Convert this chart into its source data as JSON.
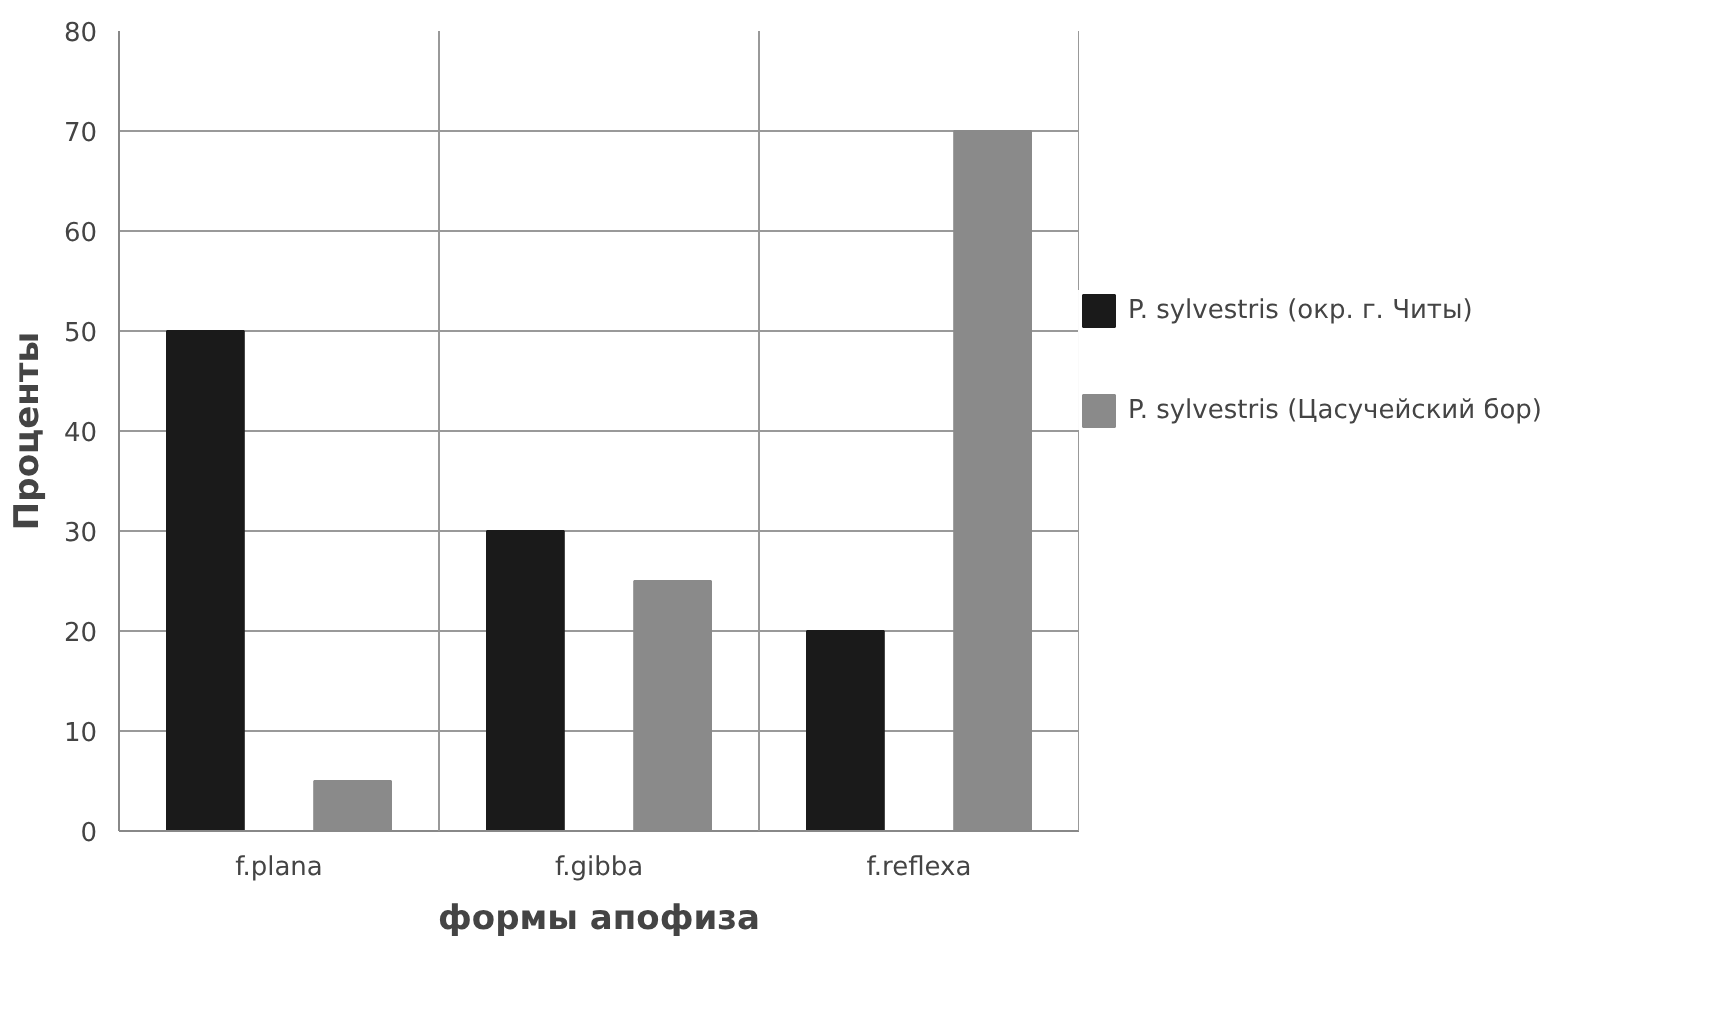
{
  "chart_data": {
    "type": "bar",
    "xlabel": "формы апофиза",
    "ylabel": "Проценты",
    "categories": [
      "f.plana",
      "f.gibba",
      "f.reflexa"
    ],
    "series": [
      {
        "name": "P. sylvestris (окр. г. Читы)",
        "color": "#1a1a1a",
        "values": [
          50,
          30,
          20
        ]
      },
      {
        "name": "P. sylvestris (Цасучейский бор)",
        "color": "#8a8a8a",
        "values": [
          5,
          25,
          70
        ]
      }
    ],
    "ylim": [
      0,
      80
    ],
    "yticks": [
      0,
      10,
      20,
      30,
      40,
      50,
      60,
      70,
      80
    ],
    "grid": true,
    "legend": "right"
  }
}
